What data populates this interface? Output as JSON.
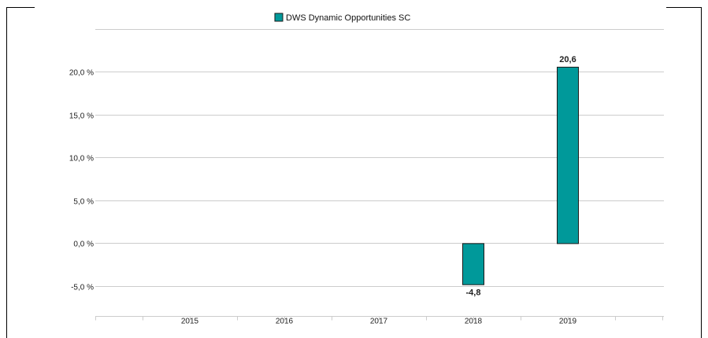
{
  "chart_data": {
    "type": "bar",
    "categories": [
      "2015",
      "2016",
      "2017",
      "2018",
      "2019"
    ],
    "series": [
      {
        "name": "DWS Dynamic Opportunities  SC",
        "values": [
          null,
          null,
          null,
          -4.8,
          20.6
        ],
        "color": "#00999a"
      }
    ],
    "data_labels": [
      "",
      "",
      "",
      "-4,8",
      "20,6"
    ],
    "title": "",
    "xlabel": "",
    "ylabel": "",
    "ylim": [
      -8.5,
      25
    ],
    "yticks": [
      -5,
      0,
      5,
      10,
      15,
      20
    ],
    "ytick_labels": [
      "-5,0 %",
      "0,0 %",
      "5,0 %",
      "10,0 %",
      "15,0 %",
      "20,0 %"
    ],
    "grid": true,
    "legend_position": "top-center",
    "colors": {
      "bar_fill": "#00999a",
      "bar_stroke": "#1a1a1a",
      "grid": "#cccccc",
      "frame": "#000000"
    }
  }
}
